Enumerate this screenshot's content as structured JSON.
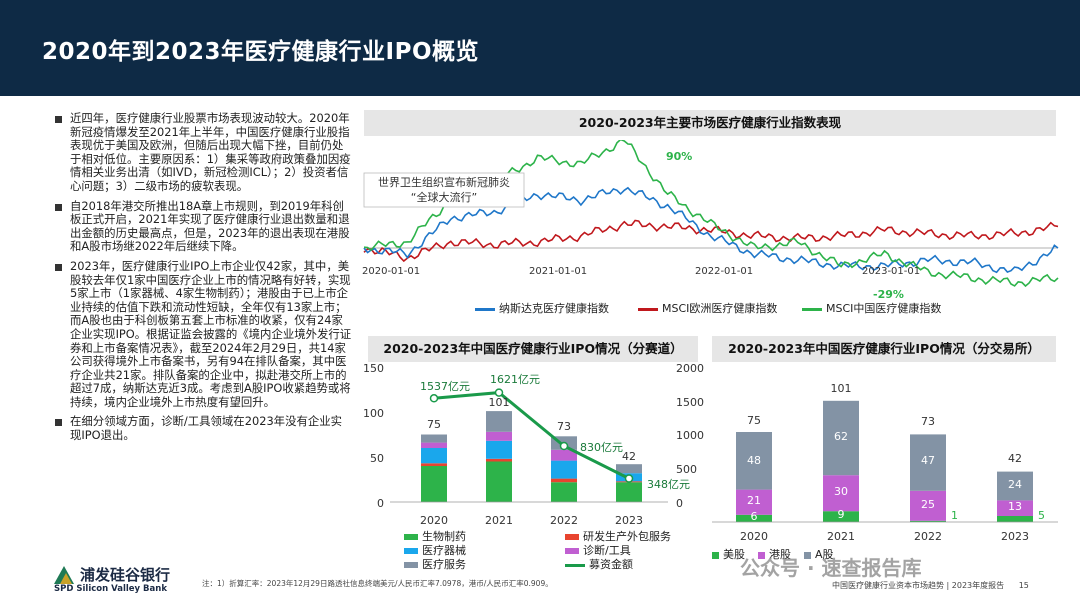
{
  "page_title": "2020年到2023年医疗健康行业IPO概览",
  "bullets": [
    "近四年，医疗健康行业股票市场表现波动较大。2020年新冠疫情爆发至2021年上半年，中国医疗健康行业股指表现优于美国及欧洲，但随后出现大幅下挫，目前仍处于相对低位。主要原因系：1）集采等政府政策叠加因疫情相关业务出清（如IVD，新冠检测ICL）；2）投资者信心问题；3）二级市场的疲软表现。",
    "自2018年港交所推出18A章上市规则，到2019年科创板正式开启，2021年实现了医疗健康行业退出数量和退出金额的历史最高点，但是，2023年的退出表现在港股和A股市场继2022年后继续下降。",
    "2023年，医疗健康行业IPO上市企业仅42家，其中，美股较去年仅1家中国医疗企业上市的情况略有好转，实现5家上市（1家器械、4家生物制药）；港股由于已上市企业持续的估值下跌和流动性短缺，全年仅有13家上市；而A股也由于科创板第五套上市标准的收紧，仅有24家企业实现IPO。根据证监会披露的《境内企业境外发行证券和上市备案情况表》，截至2024年2月29日，共14家公司获得境外上市备案书，另有94在排队备案，其中医疗企业共21家。排队备案的企业中，拟赴港交所上市的超过7成，纳斯达克近3成。考虑到A股IPO收紧趋势或将持续，境内企业境外上市热度有望回升。",
    "在细分领域方面，诊断/工具领域在2023年没有企业实现IPO退出。"
  ],
  "index_chart": {
    "title": "2020-2023年主要市场医疗健康行业指数表现",
    "annotation_line1": "世界卫生组织宣布新冠肺炎",
    "annotation_line2": "“全球大流行”",
    "peak_label": "90%",
    "trough_label": "-29%",
    "x_ticks": [
      "2020-01-01",
      "2021-01-01",
      "2022-01-01",
      "2023-01-01"
    ],
    "legend": [
      "纳斯达克医疗健康指数",
      "MSCI欧洲医疗健康指数",
      "MSCI中国医疗健康指数"
    ],
    "colors": [
      "#1f77c9",
      "#c0181d",
      "#2db34a"
    ]
  },
  "track_chart": {
    "title": "2020-2023年中国医疗健康行业IPO情况（分赛道）",
    "y_left_ticks": [
      "150",
      "100",
      "50",
      "0"
    ],
    "y_right_ticks": [
      "2000",
      "1500",
      "1000",
      "500",
      "0"
    ],
    "categories": [
      "2020",
      "2021",
      "2022",
      "2023"
    ],
    "totals": [
      "75",
      "101",
      "73",
      "42"
    ],
    "fund_labels": [
      "1537亿元",
      "1621亿元",
      "830亿元",
      "348亿元"
    ],
    "legend": [
      "生物制药",
      "研发生产外包服务",
      "医疗器械",
      "诊断/工具",
      "医疗服务",
      "募资金额"
    ]
  },
  "exchange_chart": {
    "title": "2020-2023年中国医疗健康行业IPO情况（分交易所）",
    "categories": [
      "2020",
      "2021",
      "2022",
      "2023"
    ],
    "totals": [
      "75",
      "101",
      "73",
      "42"
    ],
    "series_labels": {
      "us": [
        "6",
        "9",
        "1",
        "5"
      ],
      "hk": [
        "21",
        "30",
        "25",
        "13"
      ],
      "a": [
        "48",
        "62",
        "47",
        "24"
      ]
    },
    "legend": [
      "美股",
      "港股",
      "A股"
    ]
  },
  "chart_data": [
    {
      "type": "line",
      "title": "2020-2023年主要市场医疗健康行业指数表现",
      "x": [
        "2020-01",
        "2020-04",
        "2020-07",
        "2020-10",
        "2021-01",
        "2021-04",
        "2021-07",
        "2021-10",
        "2022-01",
        "2022-04",
        "2022-07",
        "2022-10",
        "2023-01",
        "2023-04",
        "2023-07",
        "2023-10",
        "2023-12"
      ],
      "series": [
        {
          "name": "纳斯达克医疗健康指数",
          "values": [
            0,
            -5,
            25,
            30,
            45,
            40,
            50,
            35,
            10,
            -5,
            -10,
            -15,
            -15,
            -10,
            -12,
            -20,
            0
          ]
        },
        {
          "name": "MSCI欧洲医疗健康指数",
          "values": [
            0,
            -8,
            5,
            3,
            5,
            10,
            20,
            18,
            15,
            10,
            8,
            10,
            15,
            12,
            10,
            12,
            18
          ]
        },
        {
          "name": "MSCI中国医疗健康指数",
          "values": [
            0,
            5,
            40,
            55,
            75,
            70,
            90,
            45,
            20,
            0,
            5,
            -15,
            -5,
            -20,
            -25,
            -29,
            -25
          ]
        }
      ],
      "annotations": [
        "90%",
        "-29%",
        "世界卫生组织宣布新冠肺炎“全球大流行”"
      ]
    },
    {
      "type": "bar",
      "title": "2020-2023年中国医疗健康行业IPO情况（分赛道）",
      "categories": [
        "2020",
        "2021",
        "2022",
        "2023"
      ],
      "series": [
        {
          "name": "生物制药",
          "values": [
            40,
            45,
            22,
            22
          ]
        },
        {
          "name": "研发生产外包服务",
          "values": [
            3,
            3,
            4,
            1
          ]
        },
        {
          "name": "医疗器械",
          "values": [
            17,
            20,
            20,
            9
          ]
        },
        {
          "name": "诊断/工具",
          "values": [
            6,
            10,
            12,
            0
          ]
        },
        {
          "name": "医疗服务",
          "values": [
            9,
            23,
            15,
            10
          ]
        },
        {
          "name": "募资金额",
          "values": [
            1537,
            1621,
            830,
            348
          ],
          "axis": "right"
        }
      ],
      "totals": [
        75,
        101,
        73,
        42
      ],
      "ylim": [
        0,
        150
      ],
      "ylim_right": [
        0,
        2000
      ]
    },
    {
      "type": "bar",
      "title": "2020-2023年中国医疗健康行业IPO情况（分交易所）",
      "categories": [
        "2020",
        "2021",
        "2022",
        "2023"
      ],
      "series": [
        {
          "name": "美股",
          "values": [
            6,
            9,
            1,
            5
          ]
        },
        {
          "name": "港股",
          "values": [
            21,
            30,
            25,
            13
          ]
        },
        {
          "name": "A股",
          "values": [
            48,
            62,
            47,
            24
          ]
        }
      ],
      "totals": [
        75,
        101,
        73,
        42
      ]
    }
  ],
  "footer": {
    "logo_cn": "浦发硅谷银行",
    "logo_en": "SPD Silicon Valley Bank",
    "note": "注：1）折算汇率：2023年12月29日路透社信息终端美元/人民币汇率7.0978，港币/人民币汇率0.909。",
    "watermark": "公众号 · 速查报告库",
    "report": "中国医疗健康行业资本市场趋势 | 2023年度报告",
    "page": "15"
  }
}
